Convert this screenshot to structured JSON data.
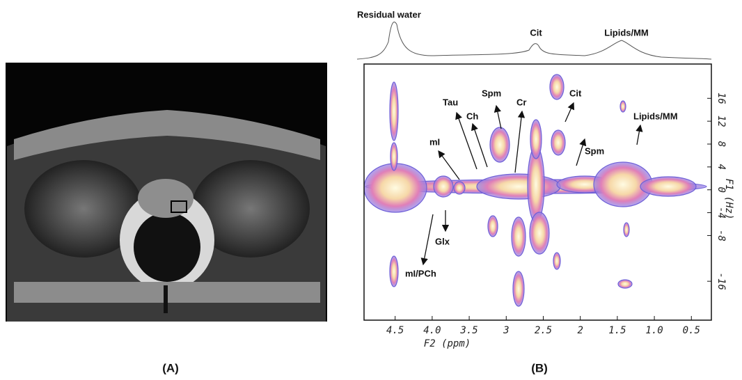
{
  "panel_a": {
    "label": "(A)"
  },
  "panel_b": {
    "label": "(B)",
    "spectrum_labels": [
      "Residual water",
      "Cit",
      "Lipids/MM"
    ],
    "x_axis": {
      "title": "F2 (ppm)",
      "lim": [
        4.92,
        0.23
      ],
      "ticks": [
        4.5,
        {
          "value": 4,
          "label": "4.0"
        },
        3.5,
        3,
        2.5,
        2,
        1.5,
        {
          "value": 1,
          "label": "1.0"
        },
        0.5
      ]
    },
    "y_axis": {
      "title": "F1 (Hz)",
      "lim": [
        -22.8,
        22
      ],
      "ticks": [
        16,
        12,
        8,
        4,
        0,
        -4,
        -8,
        -16
      ]
    },
    "annotations": [
      "mI",
      "Tau",
      "Ch",
      "Spm",
      "Cr",
      "Cit",
      "Spm",
      "Lipids/MM",
      "Glx",
      "mI/PCh"
    ]
  }
}
